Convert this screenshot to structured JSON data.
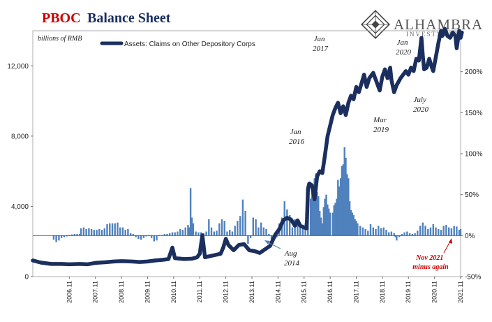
{
  "chart_data": {
    "type": "bar+line",
    "title_part1": "PBOC",
    "title_part2": "Balance Sheet",
    "left_axis_unit": "billions of RMB",
    "left_axis": {
      "min": 0,
      "max": 14000,
      "ticks": [
        0,
        4000,
        8000,
        12000
      ],
      "tick_labels": [
        "0",
        "4,000",
        "8,000",
        "12,000"
      ]
    },
    "right_axis": {
      "min": -50,
      "max": 250,
      "ticks": [
        -50,
        0,
        50,
        100,
        150,
        200
      ],
      "tick_labels": [
        "-50%",
        "0%",
        "50%",
        "100%",
        "150%",
        "200%"
      ]
    },
    "x_axis": {
      "start": 2005.5,
      "end": 2021.9,
      "ticks": [
        2006.9,
        2007.9,
        2008.9,
        2009.9,
        2010.9,
        2011.9,
        2012.9,
        2013.9,
        2014.9,
        2015.9,
        2016.9,
        2017.9,
        2018.9,
        2019.9,
        2020.9,
        2021.9
      ],
      "tick_labels": [
        "2006.11",
        "2007.11",
        "2008.11",
        "2009.11",
        "2010.11",
        "2011.11",
        "2012.11",
        "2013.11",
        "2014.11",
        "2015.11",
        "2016.11",
        "2017.11",
        "2018.11",
        "2019.11",
        "2020.11",
        "2021.11"
      ]
    },
    "legend": {
      "label": "Assets: Claims on Other Depository Corps",
      "placement": "top-left"
    },
    "line_series": {
      "name": "Assets: Claims on Other Depository Corps",
      "color": "#1b2f5e",
      "points": [
        [
          2005.5,
          920
        ],
        [
          2005.8,
          800
        ],
        [
          2006.2,
          720
        ],
        [
          2006.6,
          720
        ],
        [
          2006.9,
          700
        ],
        [
          2007.3,
          720
        ],
        [
          2007.6,
          700
        ],
        [
          2007.9,
          780
        ],
        [
          2008.3,
          820
        ],
        [
          2008.6,
          860
        ],
        [
          2008.9,
          880
        ],
        [
          2009.3,
          860
        ],
        [
          2009.6,
          830
        ],
        [
          2009.9,
          860
        ],
        [
          2010.2,
          920
        ],
        [
          2010.5,
          960
        ],
        [
          2010.7,
          1000
        ],
        [
          2010.85,
          1650
        ],
        [
          2010.95,
          1050
        ],
        [
          2011.3,
          1000
        ],
        [
          2011.6,
          1020
        ],
        [
          2011.8,
          1100
        ],
        [
          2011.9,
          1300
        ],
        [
          2012.0,
          2350
        ],
        [
          2012.1,
          1100
        ],
        [
          2012.4,
          1200
        ],
        [
          2012.7,
          1300
        ],
        [
          2012.8,
          1650
        ],
        [
          2012.9,
          2150
        ],
        [
          2013.0,
          1800
        ],
        [
          2013.2,
          1500
        ],
        [
          2013.4,
          1800
        ],
        [
          2013.6,
          1850
        ],
        [
          2013.8,
          1500
        ],
        [
          2014.0,
          1450
        ],
        [
          2014.2,
          1350
        ],
        [
          2014.4,
          1550
        ],
        [
          2014.6,
          1750
        ],
        [
          2014.8,
          2400
        ],
        [
          2014.95,
          2700
        ],
        [
          2015.1,
          3200
        ],
        [
          2015.25,
          3350
        ],
        [
          2015.4,
          3250
        ],
        [
          2015.55,
          2900
        ],
        [
          2015.65,
          3200
        ],
        [
          2015.75,
          2900
        ],
        [
          2015.9,
          2800
        ],
        [
          2016.0,
          2750
        ],
        [
          2016.05,
          5000
        ],
        [
          2016.1,
          5300
        ],
        [
          2016.2,
          5200
        ],
        [
          2016.3,
          4400
        ],
        [
          2016.4,
          5700
        ],
        [
          2016.5,
          6000
        ],
        [
          2016.6,
          5900
        ],
        [
          2016.7,
          6900
        ],
        [
          2016.8,
          8000
        ],
        [
          2016.9,
          8600
        ],
        [
          2017.0,
          9200
        ],
        [
          2017.1,
          9600
        ],
        [
          2017.2,
          9900
        ],
        [
          2017.3,
          9300
        ],
        [
          2017.4,
          9700
        ],
        [
          2017.5,
          9200
        ],
        [
          2017.6,
          9900
        ],
        [
          2017.7,
          10300
        ],
        [
          2017.8,
          10100
        ],
        [
          2017.9,
          10800
        ],
        [
          2018.0,
          10500
        ],
        [
          2018.1,
          11000
        ],
        [
          2018.2,
          11500
        ],
        [
          2018.3,
          10800
        ],
        [
          2018.4,
          11300
        ],
        [
          2018.55,
          11600
        ],
        [
          2018.7,
          11000
        ],
        [
          2018.8,
          10600
        ],
        [
          2018.9,
          11400
        ],
        [
          2019.0,
          11800
        ],
        [
          2019.1,
          11300
        ],
        [
          2019.2,
          11900
        ],
        [
          2019.25,
          11200
        ],
        [
          2019.35,
          10500
        ],
        [
          2019.45,
          10900
        ],
        [
          2019.6,
          11300
        ],
        [
          2019.8,
          11700
        ],
        [
          2019.9,
          11500
        ],
        [
          2020.0,
          11900
        ],
        [
          2020.1,
          11700
        ],
        [
          2020.2,
          12400
        ],
        [
          2020.3,
          12300
        ],
        [
          2020.4,
          13600
        ],
        [
          2020.45,
          12600
        ],
        [
          2020.5,
          11800
        ],
        [
          2020.6,
          11900
        ],
        [
          2020.7,
          12400
        ],
        [
          2020.8,
          11900
        ],
        [
          2020.85,
          11700
        ],
        [
          2020.95,
          12500
        ],
        [
          2021.05,
          13300
        ],
        [
          2021.15,
          14000
        ],
        [
          2021.2,
          13700
        ],
        [
          2021.3,
          14100
        ],
        [
          2021.4,
          13700
        ],
        [
          2021.5,
          13600
        ],
        [
          2021.6,
          13900
        ],
        [
          2021.7,
          13700
        ],
        [
          2021.75,
          13000
        ],
        [
          2021.85,
          14000
        ],
        [
          2021.9,
          13600
        ],
        [
          2021.95,
          13900
        ]
      ]
    },
    "bar_series": {
      "name": "",
      "color": "#4f81bd",
      "points": [
        [
          2006.3,
          -5
        ],
        [
          2006.4,
          -8
        ],
        [
          2006.5,
          -6
        ],
        [
          2006.6,
          -3
        ],
        [
          2006.7,
          -2
        ],
        [
          2006.8,
          -1
        ],
        [
          2006.9,
          1
        ],
        [
          2007.0,
          1.5
        ],
        [
          2007.1,
          2
        ],
        [
          2007.2,
          2
        ],
        [
          2007.3,
          2
        ],
        [
          2007.35,
          9
        ],
        [
          2007.45,
          10
        ],
        [
          2007.55,
          8
        ],
        [
          2007.65,
          9
        ],
        [
          2007.75,
          8
        ],
        [
          2007.85,
          7
        ],
        [
          2007.95,
          7
        ],
        [
          2008.05,
          8
        ],
        [
          2008.15,
          7
        ],
        [
          2008.25,
          9
        ],
        [
          2008.35,
          14
        ],
        [
          2008.45,
          15
        ],
        [
          2008.55,
          15
        ],
        [
          2008.65,
          15
        ],
        [
          2008.75,
          16
        ],
        [
          2008.85,
          10
        ],
        [
          2008.95,
          10
        ],
        [
          2009.05,
          7
        ],
        [
          2009.15,
          8
        ],
        [
          2009.25,
          3
        ],
        [
          2009.35,
          2
        ],
        [
          2009.45,
          -2
        ],
        [
          2009.55,
          -4
        ],
        [
          2009.65,
          -5
        ],
        [
          2009.75,
          -3
        ],
        [
          2009.85,
          -1
        ],
        [
          2009.95,
          1
        ],
        [
          2010.05,
          -3
        ],
        [
          2010.15,
          -7
        ],
        [
          2010.25,
          -6
        ],
        [
          2010.35,
          1
        ],
        [
          2010.45,
          1
        ],
        [
          2010.55,
          2
        ],
        [
          2010.65,
          2
        ],
        [
          2010.75,
          3
        ],
        [
          2010.85,
          4
        ],
        [
          2010.95,
          4
        ],
        [
          2011.05,
          5
        ],
        [
          2011.15,
          8
        ],
        [
          2011.25,
          7
        ],
        [
          2011.35,
          10
        ],
        [
          2011.45,
          13
        ],
        [
          2011.5,
          10
        ],
        [
          2011.55,
          58
        ],
        [
          2011.6,
          22
        ],
        [
          2011.65,
          15
        ],
        [
          2011.75,
          5
        ],
        [
          2011.85,
          4
        ],
        [
          2011.95,
          4
        ],
        [
          2012.05,
          3
        ],
        [
          2012.15,
          5
        ],
        [
          2012.25,
          20
        ],
        [
          2012.35,
          10
        ],
        [
          2012.45,
          5
        ],
        [
          2012.55,
          6
        ],
        [
          2012.65,
          15
        ],
        [
          2012.75,
          20
        ],
        [
          2012.85,
          18
        ],
        [
          2012.95,
          5
        ],
        [
          2013.05,
          7
        ],
        [
          2013.15,
          5
        ],
        [
          2013.25,
          12
        ],
        [
          2013.35,
          18
        ],
        [
          2013.45,
          24
        ],
        [
          2013.55,
          44
        ],
        [
          2013.65,
          30
        ],
        [
          2013.75,
          -10
        ],
        [
          2013.85,
          -3
        ],
        [
          2013.95,
          22
        ],
        [
          2014.05,
          20
        ],
        [
          2014.15,
          10
        ],
        [
          2014.25,
          16
        ],
        [
          2014.35,
          10
        ],
        [
          2014.45,
          8
        ],
        [
          2014.55,
          2
        ],
        [
          2014.65,
          -5
        ],
        [
          2014.75,
          -4
        ],
        [
          2014.85,
          -2
        ],
        [
          2014.95,
          15
        ],
        [
          2015.05,
          22
        ],
        [
          2015.15,
          42
        ],
        [
          2015.25,
          32
        ],
        [
          2015.35,
          25
        ],
        [
          2015.45,
          10
        ],
        [
          2015.55,
          20
        ],
        [
          2015.65,
          15
        ],
        [
          2015.75,
          10
        ],
        [
          2015.85,
          13
        ],
        [
          2015.95,
          15
        ],
        [
          2016.05,
          10
        ],
        [
          2016.15,
          45
        ],
        [
          2016.2,
          55
        ],
        [
          2016.25,
          62
        ],
        [
          2016.3,
          70
        ],
        [
          2016.35,
          76
        ],
        [
          2016.4,
          53
        ],
        [
          2016.45,
          48
        ],
        [
          2016.5,
          30
        ],
        [
          2016.55,
          22
        ],
        [
          2016.6,
          15
        ],
        [
          2016.65,
          35
        ],
        [
          2016.7,
          45
        ],
        [
          2016.75,
          50
        ],
        [
          2016.8,
          38
        ],
        [
          2016.85,
          33
        ],
        [
          2016.9,
          28
        ],
        [
          2017.0,
          28
        ],
        [
          2017.05,
          37
        ],
        [
          2017.1,
          40
        ],
        [
          2017.15,
          45
        ],
        [
          2017.2,
          68
        ],
        [
          2017.25,
          60
        ],
        [
          2017.3,
          70
        ],
        [
          2017.35,
          85
        ],
        [
          2017.4,
          87
        ],
        [
          2017.45,
          108
        ],
        [
          2017.5,
          95
        ],
        [
          2017.55,
          75
        ],
        [
          2017.6,
          70
        ],
        [
          2017.65,
          42
        ],
        [
          2017.7,
          31
        ],
        [
          2017.75,
          28
        ],
        [
          2017.8,
          25
        ],
        [
          2017.85,
          20
        ],
        [
          2017.9,
          18
        ],
        [
          2017.95,
          15
        ],
        [
          2018.05,
          12
        ],
        [
          2018.15,
          10
        ],
        [
          2018.25,
          8
        ],
        [
          2018.35,
          6
        ],
        [
          2018.45,
          14
        ],
        [
          2018.55,
          10
        ],
        [
          2018.65,
          8
        ],
        [
          2018.75,
          12
        ],
        [
          2018.85,
          9
        ],
        [
          2018.95,
          10
        ],
        [
          2019.05,
          7
        ],
        [
          2019.15,
          4
        ],
        [
          2019.25,
          5
        ],
        [
          2019.35,
          3
        ],
        [
          2019.4,
          -2
        ],
        [
          2019.45,
          -6
        ],
        [
          2019.55,
          -2
        ],
        [
          2019.65,
          2
        ],
        [
          2019.75,
          4
        ],
        [
          2019.85,
          5
        ],
        [
          2019.95,
          3
        ],
        [
          2020.05,
          2
        ],
        [
          2020.15,
          3
        ],
        [
          2020.25,
          6
        ],
        [
          2020.35,
          12
        ],
        [
          2020.45,
          16
        ],
        [
          2020.55,
          12
        ],
        [
          2020.65,
          8
        ],
        [
          2020.75,
          10
        ],
        [
          2020.85,
          14
        ],
        [
          2020.95,
          10
        ],
        [
          2021.05,
          8
        ],
        [
          2021.15,
          7
        ],
        [
          2021.25,
          12
        ],
        [
          2021.35,
          13
        ],
        [
          2021.45,
          10
        ],
        [
          2021.55,
          9
        ],
        [
          2021.65,
          12
        ],
        [
          2021.75,
          11
        ],
        [
          2021.85,
          7
        ],
        [
          2021.9,
          8
        ]
      ]
    },
    "annotations": [
      {
        "id": "jan2017",
        "lines": [
          "Jan",
          "2017"
        ]
      },
      {
        "id": "jan2016",
        "lines": [
          "Jan",
          "2016"
        ]
      },
      {
        "id": "aug2014",
        "lines": [
          "Aug",
          "2014"
        ]
      },
      {
        "id": "jan2020",
        "lines": [
          "Jan",
          "2020"
        ]
      },
      {
        "id": "july2020",
        "lines": [
          "July",
          "2020"
        ]
      },
      {
        "id": "mar2019",
        "lines": [
          "Mar",
          "2019"
        ]
      },
      {
        "id": "nov2021",
        "lines": [
          "Nov 2021",
          "minus again"
        ],
        "color": "#cc0000"
      }
    ]
  },
  "logo": {
    "name": "ALHAMBRA",
    "sub": "INVESTMENTS"
  }
}
